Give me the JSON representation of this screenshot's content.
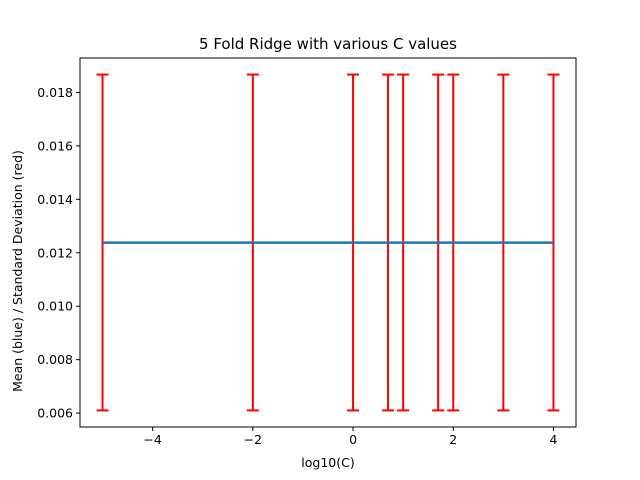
{
  "chart_data": {
    "type": "line",
    "title": "5 Fold Ridge with various C values",
    "xlabel": "log10(C)",
    "ylabel": "Mean (blue) / Standard Deviation (red)",
    "x": [
      -5,
      -2,
      0,
      0.699,
      1,
      1.699,
      2,
      3,
      4
    ],
    "series": [
      {
        "values": [
          0.01238,
          0.01238,
          0.01238,
          0.01238,
          0.01238,
          0.01238,
          0.01238,
          0.01238,
          0.01238
        ],
        "color": "#1f77b4",
        "error_low": [
          0.0061,
          0.0061,
          0.0061,
          0.0061,
          0.0061,
          0.0061,
          0.0061,
          0.0061,
          0.0061
        ],
        "error_high": [
          0.01867,
          0.01867,
          0.01867,
          0.01867,
          0.01867,
          0.01867,
          0.01867,
          0.01867,
          0.01867
        ],
        "error_color": "#ff0000"
      }
    ],
    "xlim": [
      -5.45,
      4.45
    ],
    "ylim": [
      0.00548,
      0.01929
    ],
    "xticks": [
      -4,
      -2,
      0,
      2,
      4
    ],
    "xtick_labels": [
      "−4",
      "−2",
      "0",
      "2",
      "4"
    ],
    "yticks": [
      0.006,
      0.008,
      0.01,
      0.012,
      0.014,
      0.016,
      0.018
    ],
    "ytick_labels": [
      "0.006",
      "0.008",
      "0.010",
      "0.012",
      "0.014",
      "0.016",
      "0.018"
    ],
    "grid": false,
    "legend": "none"
  }
}
